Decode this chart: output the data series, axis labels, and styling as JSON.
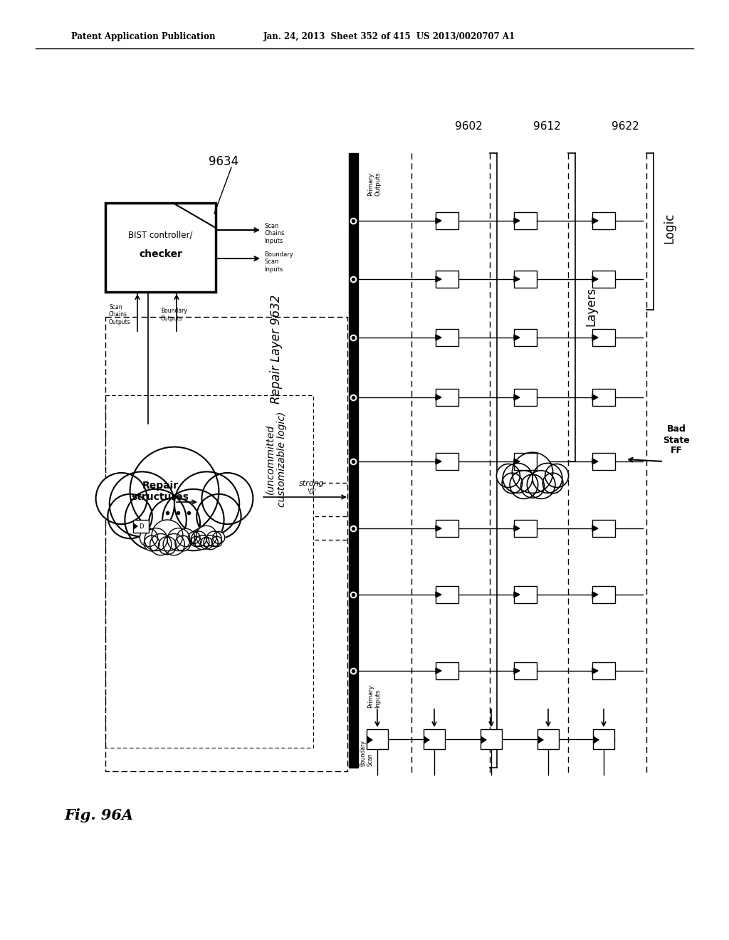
{
  "header_left": "Patent Application Publication",
  "header_right": "Jan. 24, 2013  Sheet 352 of 415  US 2013/0020707 A1",
  "fig_label": "Fig. 96A",
  "bist_label_line1": "BIST controller/",
  "bist_label_line2": "checker",
  "bist_id": "9634",
  "repair_layer_label": "Repair Layer 9632",
  "repair_logic_label": "(uncommitted\ncustomizable logic)",
  "repair_structures": "Repair\nstructures",
  "label_9622": "9622",
  "label_9612": "9612",
  "label_9602": "9602",
  "logic_label": "Logic",
  "layers_label": "Layers",
  "bad_state_ff": "Bad\nState\nFF",
  "primary_outputs": "Primary\nOutputs",
  "primary_inputs": "Primary\nInputs",
  "boundary_scan_label": "Boundary\nScan",
  "scan_chains_inputs": "Scan\nChains\nInputs",
  "boundary_scan_inputs": "Boundary\nScan\nInputs",
  "scan_chains_outputs": "Scan\nChains\nOutputs",
  "boundary_outputs": "Boundary\nOutputs",
  "strong_0": "strong\n'0'",
  "bg_color": "#ffffff",
  "lc": "#000000"
}
